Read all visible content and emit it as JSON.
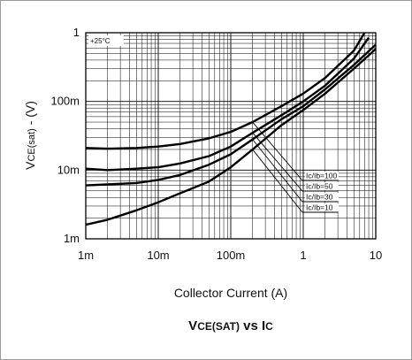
{
  "chart_data": {
    "type": "line",
    "title_main": "V",
    "title_sub1": "CE(SAT)",
    "title_mid": " vs I",
    "title_sub2": "C",
    "xlabel": "Collector Current (A)",
    "ylabel_main": "V",
    "ylabel_sub": "CE(sat)",
    "ylabel_tail": " - (V)",
    "temperature_note": "+25°C",
    "x_scale": "log",
    "y_scale": "log",
    "xlim": [
      0.001,
      10
    ],
    "ylim": [
      0.001,
      1
    ],
    "x_ticks": [
      {
        "value": 0.001,
        "label": "1m"
      },
      {
        "value": 0.01,
        "label": "10m"
      },
      {
        "value": 0.1,
        "label": "100m"
      },
      {
        "value": 1,
        "label": "1"
      },
      {
        "value": 10,
        "label": "10"
      }
    ],
    "y_ticks": [
      {
        "value": 0.001,
        "label": "1m"
      },
      {
        "value": 0.01,
        "label": "10m"
      },
      {
        "value": 0.1,
        "label": "100m"
      },
      {
        "value": 1,
        "label": "1"
      }
    ],
    "grid": true,
    "series": [
      {
        "name": "Ic/Ib=100",
        "x": [
          0.001,
          0.002,
          0.005,
          0.01,
          0.02,
          0.05,
          0.1,
          0.2,
          0.5,
          1,
          2,
          5,
          7
        ],
        "y": [
          0.021,
          0.0205,
          0.021,
          0.022,
          0.024,
          0.029,
          0.036,
          0.05,
          0.085,
          0.13,
          0.22,
          0.55,
          1.0
        ]
      },
      {
        "name": "Ic/Ib=50",
        "x": [
          0.001,
          0.002,
          0.005,
          0.01,
          0.02,
          0.05,
          0.1,
          0.2,
          0.5,
          1,
          2,
          5,
          8
        ],
        "y": [
          0.0105,
          0.01,
          0.0105,
          0.011,
          0.0125,
          0.016,
          0.022,
          0.035,
          0.063,
          0.1,
          0.17,
          0.42,
          0.85
        ]
      },
      {
        "name": "Ic/Ib=30",
        "x": [
          0.001,
          0.002,
          0.005,
          0.01,
          0.02,
          0.05,
          0.1,
          0.2,
          0.5,
          1,
          2,
          5,
          10
        ],
        "y": [
          0.006,
          0.0062,
          0.0065,
          0.0072,
          0.0085,
          0.012,
          0.017,
          0.028,
          0.055,
          0.085,
          0.15,
          0.34,
          0.67
        ]
      },
      {
        "name": "Ic/Ib=10",
        "x": [
          0.001,
          0.002,
          0.005,
          0.01,
          0.02,
          0.05,
          0.1,
          0.2,
          0.5,
          1,
          2,
          5,
          10
        ],
        "y": [
          0.0016,
          0.0019,
          0.0026,
          0.0034,
          0.0046,
          0.0068,
          0.011,
          0.02,
          0.045,
          0.075,
          0.13,
          0.3,
          0.58
        ]
      }
    ],
    "legend_labels": [
      "Ic/Ib=100",
      "Ic/Ib=50",
      "Ic/Ib=30",
      "Ic/Ib=10"
    ],
    "line_color": "#000000",
    "grid_color": "#000000"
  }
}
